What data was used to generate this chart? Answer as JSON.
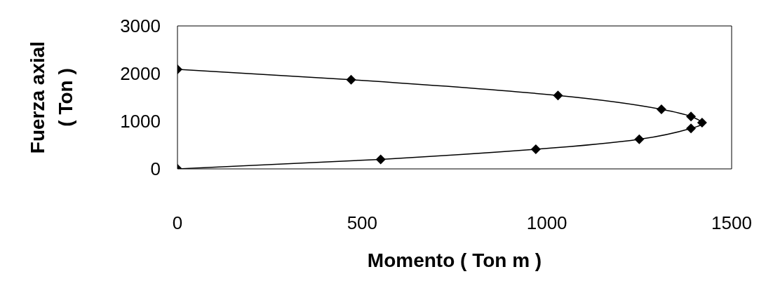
{
  "chart_data": {
    "type": "line",
    "xlabel": "Momento ( Ton m )",
    "ylabel": "Fuerza axial\n( Ton )",
    "series": [
      {
        "color": "#000000",
        "x": [
          0,
          550,
          970,
          1250,
          1390,
          1420,
          1390,
          1310,
          1030,
          470,
          0
        ],
        "values": [
          0,
          200,
          410,
          620,
          850,
          970,
          1100,
          1250,
          1540,
          1870,
          2090
        ]
      }
    ],
    "xlim": [
      0,
      1500
    ],
    "xticks": [
      0,
      500,
      1000,
      1500
    ],
    "ylim": [
      0,
      3000
    ],
    "yticks": [
      0,
      1000,
      2000,
      3000
    ],
    "grid": false,
    "legend": false,
    "marker": "diamond",
    "line_style": "solid"
  }
}
